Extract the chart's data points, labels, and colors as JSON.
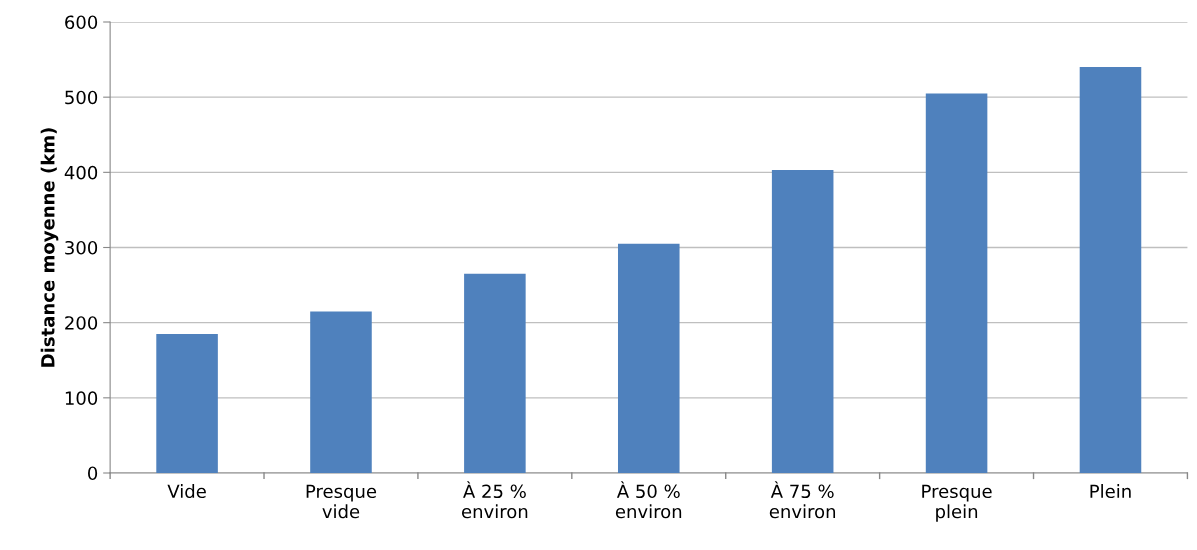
{
  "chart_data": {
    "type": "bar",
    "ylabel": "Distance moyenne (km)",
    "categories": [
      "Vide",
      "Presque\nvide",
      "À 25 %\nenviron",
      "À 50 %\nenviron",
      "À 75 %\nenviron",
      "Presque\nplein",
      "Plein"
    ],
    "values": [
      185,
      215,
      265,
      305,
      403,
      505,
      540
    ],
    "color": "#4f81bd",
    "ylim": [
      0,
      600
    ],
    "yticks": [
      0,
      100,
      200,
      300,
      400,
      500,
      600
    ],
    "grid": "y"
  }
}
